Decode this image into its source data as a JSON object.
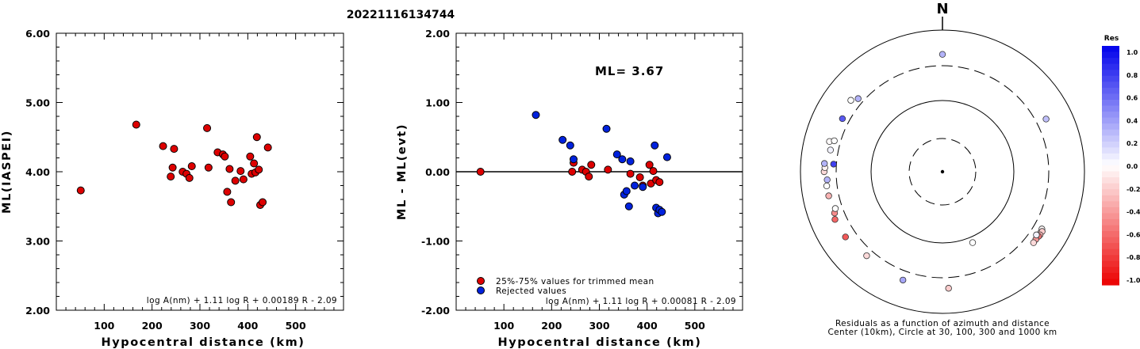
{
  "title": "20221116134744",
  "chart_data": [
    {
      "type": "scatter",
      "xlabel": "Hypocentral distance (km)",
      "ylabel": "ML(IASPEI)",
      "xlim": [
        0,
        600
      ],
      "ylim": [
        2.0,
        6.0
      ],
      "x_ticks": [
        "100",
        "200",
        "300",
        "400",
        "500"
      ],
      "y_ticks": [
        "2.00",
        "3.00",
        "4.00",
        "5.00",
        "6.00"
      ],
      "formula": "log A(nm) + 1.11 log R + 0.00189 R - 2.09",
      "series": [
        {
          "color": "#dd0000",
          "x": [
            51,
            167,
            223,
            239,
            243,
            246,
            264,
            272,
            278,
            283,
            315,
            318,
            337,
            348,
            352,
            357,
            362,
            365,
            374,
            385,
            391,
            405,
            408,
            413,
            416,
            419,
            423,
            426,
            431,
            442
          ],
          "y": [
            3.73,
            4.68,
            4.37,
            3.93,
            4.06,
            4.33,
            4.0,
            3.97,
            3.91,
            4.08,
            4.63,
            4.06,
            4.28,
            4.25,
            4.22,
            3.71,
            4.04,
            3.56,
            3.87,
            4.01,
            3.89,
            4.22,
            3.97,
            4.12,
            3.99,
            4.5,
            4.03,
            3.52,
            3.56,
            4.35
          ]
        }
      ]
    },
    {
      "type": "scatter",
      "xlabel": "Hypocentral distance (km)",
      "ylabel": "ML - ML(evt)",
      "xlim": [
        0,
        600
      ],
      "ylim": [
        -2.0,
        2.0
      ],
      "x_ticks": [
        "100",
        "200",
        "300",
        "400",
        "500"
      ],
      "y_ticks": [
        "-2.00",
        "-1.00",
        "0.00",
        "1.00",
        "2.00"
      ],
      "annotation": "ML= 3.67",
      "formula": "log A(nm) + 1.11 log R + 0.00081 R - 2.09",
      "series": [
        {
          "name": "25%-75% values for trimmed mean",
          "color": "#dd0000",
          "x": [
            51,
            243,
            246,
            264,
            272,
            278,
            283,
            318,
            365,
            385,
            391,
            405,
            408,
            413,
            419,
            426
          ],
          "y": [
            0.0,
            0.0,
            0.13,
            0.03,
            0.0,
            -0.07,
            0.1,
            0.03,
            -0.03,
            -0.08,
            -0.2,
            0.1,
            -0.17,
            0.01,
            -0.12,
            -0.15
          ]
        },
        {
          "name": "Rejected values",
          "color": "#0022dd",
          "x": [
            167,
            223,
            239,
            246,
            315,
            337,
            348,
            352,
            357,
            362,
            365,
            374,
            391,
            416,
            419,
            423,
            426,
            431,
            442
          ],
          "y": [
            0.82,
            0.46,
            0.38,
            0.18,
            0.62,
            0.25,
            0.18,
            -0.33,
            -0.28,
            -0.5,
            0.15,
            -0.2,
            -0.22,
            0.38,
            -0.52,
            -0.6,
            -0.55,
            -0.58,
            0.21
          ]
        }
      ]
    },
    {
      "type": "scatter",
      "subtype": "polar residual map",
      "north_label": "N",
      "caption_line1": "Residuals as a function of azimuth and distance",
      "caption_line2": "Center (10km), Circle at 30, 100, 300 and 1000 km",
      "rings_km": [
        30,
        100,
        300,
        1000
      ],
      "points": [
        {
          "azimuth": 0,
          "distance_km": 440,
          "res": 0.3
        },
        {
          "azimuth": 63,
          "distance_km": 420,
          "res": 0.25
        },
        {
          "azimuth": 120,
          "distance_km": 400,
          "res": -0.02
        },
        {
          "azimuth": 122,
          "distance_km": 410,
          "res": -0.1
        },
        {
          "azimuth": 121,
          "distance_km": 420,
          "res": -0.2
        },
        {
          "azimuth": 123,
          "distance_km": 420,
          "res": -0.3
        },
        {
          "azimuth": 124,
          "distance_km": 415,
          "res": -0.55
        },
        {
          "azimuth": 126,
          "distance_km": 408,
          "res": -0.4
        },
        {
          "azimuth": 128,
          "distance_km": 410,
          "res": -0.15
        },
        {
          "azimuth": 124,
          "distance_km": 380,
          "res": 0.05
        },
        {
          "azimuth": 157,
          "distance_km": 120,
          "res": 0.0
        },
        {
          "azimuth": 177,
          "distance_km": 430,
          "res": -0.2
        },
        {
          "azimuth": 200,
          "distance_km": 410,
          "res": 0.35
        },
        {
          "azimuth": 222,
          "distance_km": 380,
          "res": -0.15
        },
        {
          "azimuth": 236,
          "distance_km": 430,
          "res": -0.65
        },
        {
          "azimuth": 246,
          "distance_km": 440,
          "res": -0.6
        },
        {
          "azimuth": 249,
          "distance_km": 410,
          "res": -0.45
        },
        {
          "azimuth": 251,
          "distance_km": 380,
          "res": 0.0
        },
        {
          "azimuth": 258,
          "distance_km": 420,
          "res": -0.3
        },
        {
          "azimuth": 263,
          "distance_km": 425,
          "res": 0.0
        },
        {
          "azimuth": 266,
          "distance_km": 410,
          "res": 0.3
        },
        {
          "azimuth": 270,
          "distance_km": 450,
          "res": -0.15
        },
        {
          "azimuth": 272,
          "distance_km": 440,
          "res": -0.05
        },
        {
          "azimuth": 274,
          "distance_km": 450,
          "res": 0.3
        },
        {
          "azimuth": 274,
          "distance_km": 330,
          "res": 0.75
        },
        {
          "azimuth": 281,
          "distance_km": 390,
          "res": 0.05
        },
        {
          "azimuth": 285,
          "distance_km": 430,
          "res": -0.02
        },
        {
          "azimuth": 286,
          "distance_km": 370,
          "res": 0.0
        },
        {
          "azimuth": 298,
          "distance_km": 380,
          "res": 0.65
        },
        {
          "azimuth": 308,
          "distance_km": 420,
          "res": 0.0
        },
        {
          "azimuth": 311,
          "distance_km": 360,
          "res": 0.3
        }
      ],
      "colorbar": {
        "title": "Res",
        "labels": [
          "1.0",
          "0.8",
          "0.6",
          "0.4",
          "0.2",
          "0.0",
          "-0.2",
          "-0.4",
          "-0.6",
          "-0.8",
          "-1.0"
        ]
      }
    }
  ]
}
